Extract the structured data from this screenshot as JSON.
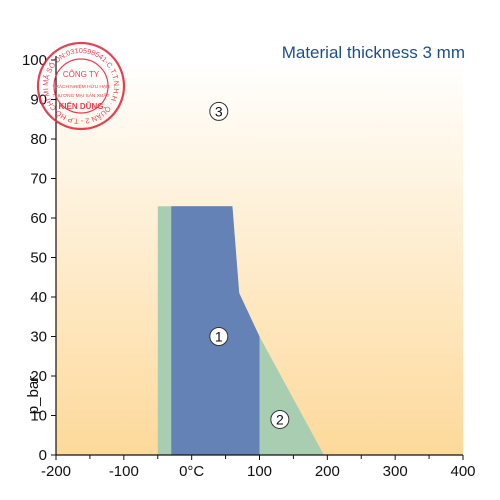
{
  "chart_data": {
    "type": "area",
    "title": "Material thickness 3 mm",
    "ylabel": "p_bar",
    "xlim": [
      -200,
      400
    ],
    "ylim": [
      0,
      100
    ],
    "x_ticks": [
      -200,
      -100,
      0,
      100,
      200,
      300,
      400
    ],
    "x_tick_labels": [
      "-200",
      "-100",
      "0°C",
      "100",
      "200",
      "300",
      "400"
    ],
    "y_ticks": [
      0,
      10,
      20,
      30,
      40,
      50,
      60,
      70,
      80,
      90,
      100
    ],
    "y_tick_labels": [
      "0",
      "10",
      "20",
      "30",
      "40",
      "50",
      "60",
      "70",
      "80",
      "90",
      "100"
    ],
    "regions": [
      {
        "label": "2",
        "color": "#a8cdb0",
        "polygon": [
          [
            -50,
            0
          ],
          [
            -50,
            63
          ],
          [
            60,
            63
          ],
          [
            70,
            41
          ],
          [
            100,
            30
          ],
          [
            195,
            0
          ]
        ],
        "label_at": [
          130,
          9
        ]
      },
      {
        "label": "1",
        "color": "#6482b6",
        "polygon": [
          [
            -30,
            0
          ],
          [
            -30,
            63
          ],
          [
            60,
            63
          ],
          [
            70,
            41
          ],
          [
            100,
            30
          ],
          [
            100,
            0
          ]
        ],
        "label_at": [
          40,
          30
        ]
      },
      {
        "label": "3",
        "color": "#fdd99a",
        "label_at": [
          40,
          87
        ]
      }
    ],
    "background_gradient": [
      "#ffffff",
      "#fdd99a"
    ],
    "grid": false
  },
  "stamp": {
    "color": "#e0283c",
    "ring_text": "MÃ SỐ DN:0310598541-C.T.T.N.H.H · QUẬN 2 - T.P HỒ CHÍ MINH ·",
    "center_lines": [
      "CÔNG TY",
      "TRÁCH NHIỆM HỮU HẠN",
      "THƯƠNG MẠI SẢN XUẤT",
      "KIẾN DŨNG"
    ]
  },
  "colors": {
    "title": "#1f4e8c",
    "axis": "#111111"
  }
}
